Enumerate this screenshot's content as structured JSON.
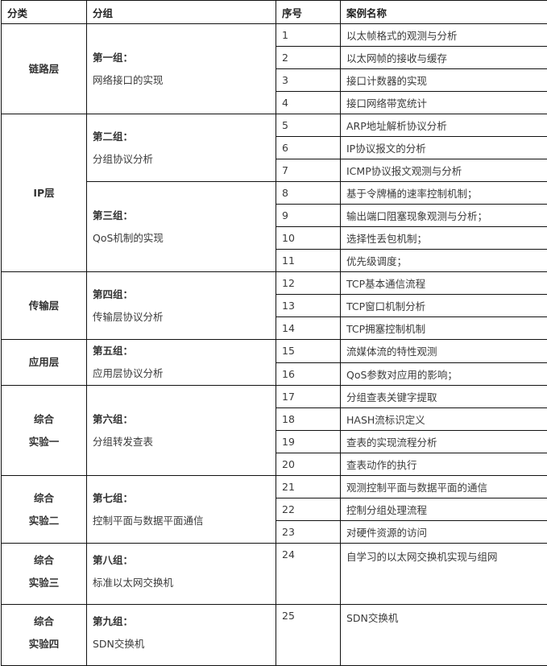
{
  "header": {
    "category": "分类",
    "group": "分组",
    "index": "序号",
    "case_name": "案例名称"
  },
  "categories": [
    {
      "name": [
        "链路层"
      ],
      "groups": [
        {
          "title": "第一组：",
          "desc": "网络接口的实现",
          "cases": [
            {
              "n": "1",
              "name": "以太帧格式的观测与分析"
            },
            {
              "n": "2",
              "name": "以太网帧的接收与缓存"
            },
            {
              "n": "3",
              "name": "接口计数器的实现"
            },
            {
              "n": "4",
              "name": "接口网络带宽统计"
            }
          ]
        }
      ]
    },
    {
      "name": [
        "IP层"
      ],
      "groups": [
        {
          "title": "第二组：",
          "desc": "分组协议分析",
          "cases": [
            {
              "n": "5",
              "name": "ARP地址解析协议分析"
            },
            {
              "n": "6",
              "name": "IP协议报文的分析"
            },
            {
              "n": "7",
              "name": "ICMP协议报文观测与分析"
            }
          ]
        },
        {
          "title": "第三组：",
          "desc": "QoS机制的实现",
          "cases": [
            {
              "n": "8",
              "name": "基于令牌桶的速率控制机制；"
            },
            {
              "n": "9",
              "name": "输出端口阻塞现象观测与分析；"
            },
            {
              "n": "10",
              "name": "选择性丢包机制；"
            },
            {
              "n": "11",
              "name": "优先级调度；"
            }
          ]
        }
      ]
    },
    {
      "name": [
        "传输层"
      ],
      "groups": [
        {
          "title": "第四组：",
          "desc": "传输层协议分析",
          "cases": [
            {
              "n": "12",
              "name": "TCP基本通信流程"
            },
            {
              "n": "13",
              "name": "TCP窗口机制分析"
            },
            {
              "n": "14",
              "name": "TCP拥塞控制机制"
            }
          ]
        }
      ]
    },
    {
      "name": [
        "应用层"
      ],
      "groups": [
        {
          "title": "第五组：",
          "desc": "应用层协议分析",
          "cases": [
            {
              "n": "15",
              "name": "流媒体流的特性观测"
            },
            {
              "n": "16",
              "name": "QoS参数对应用的影响；"
            }
          ]
        }
      ]
    },
    {
      "name": [
        "综合",
        "实验一"
      ],
      "groups": [
        {
          "title": "第六组：",
          "desc": "分组转发查表",
          "cases": [
            {
              "n": "17",
              "name": "分组查表关键字提取"
            },
            {
              "n": "18",
              "name": "HASH流标识定义"
            },
            {
              "n": "19",
              "name": "查表的实现流程分析"
            },
            {
              "n": "20",
              "name": "查表动作的执行"
            }
          ]
        }
      ]
    },
    {
      "name": [
        "综合",
        "实验二"
      ],
      "groups": [
        {
          "title": "第七组：",
          "desc": "控制平面与数据平面通信",
          "cases": [
            {
              "n": "21",
              "name": "观测控制平面与数据平面的通信"
            },
            {
              "n": "22",
              "name": "控制分组处理流程"
            },
            {
              "n": "23",
              "name": "对硬件资源的访问"
            }
          ]
        }
      ]
    },
    {
      "name": [
        "综合",
        "实验三"
      ],
      "tall": true,
      "groups": [
        {
          "title": "第八组：",
          "desc": "标准以太网交换机",
          "cases": [
            {
              "n": "24",
              "name": "自学习的以太网交换机实现与组网"
            }
          ]
        }
      ]
    },
    {
      "name": [
        "综合",
        "实验四"
      ],
      "tall": true,
      "groups": [
        {
          "title": "第九组：",
          "desc": "SDN交换机",
          "cases": [
            {
              "n": "25",
              "name": "SDN交换机"
            }
          ]
        }
      ]
    }
  ]
}
